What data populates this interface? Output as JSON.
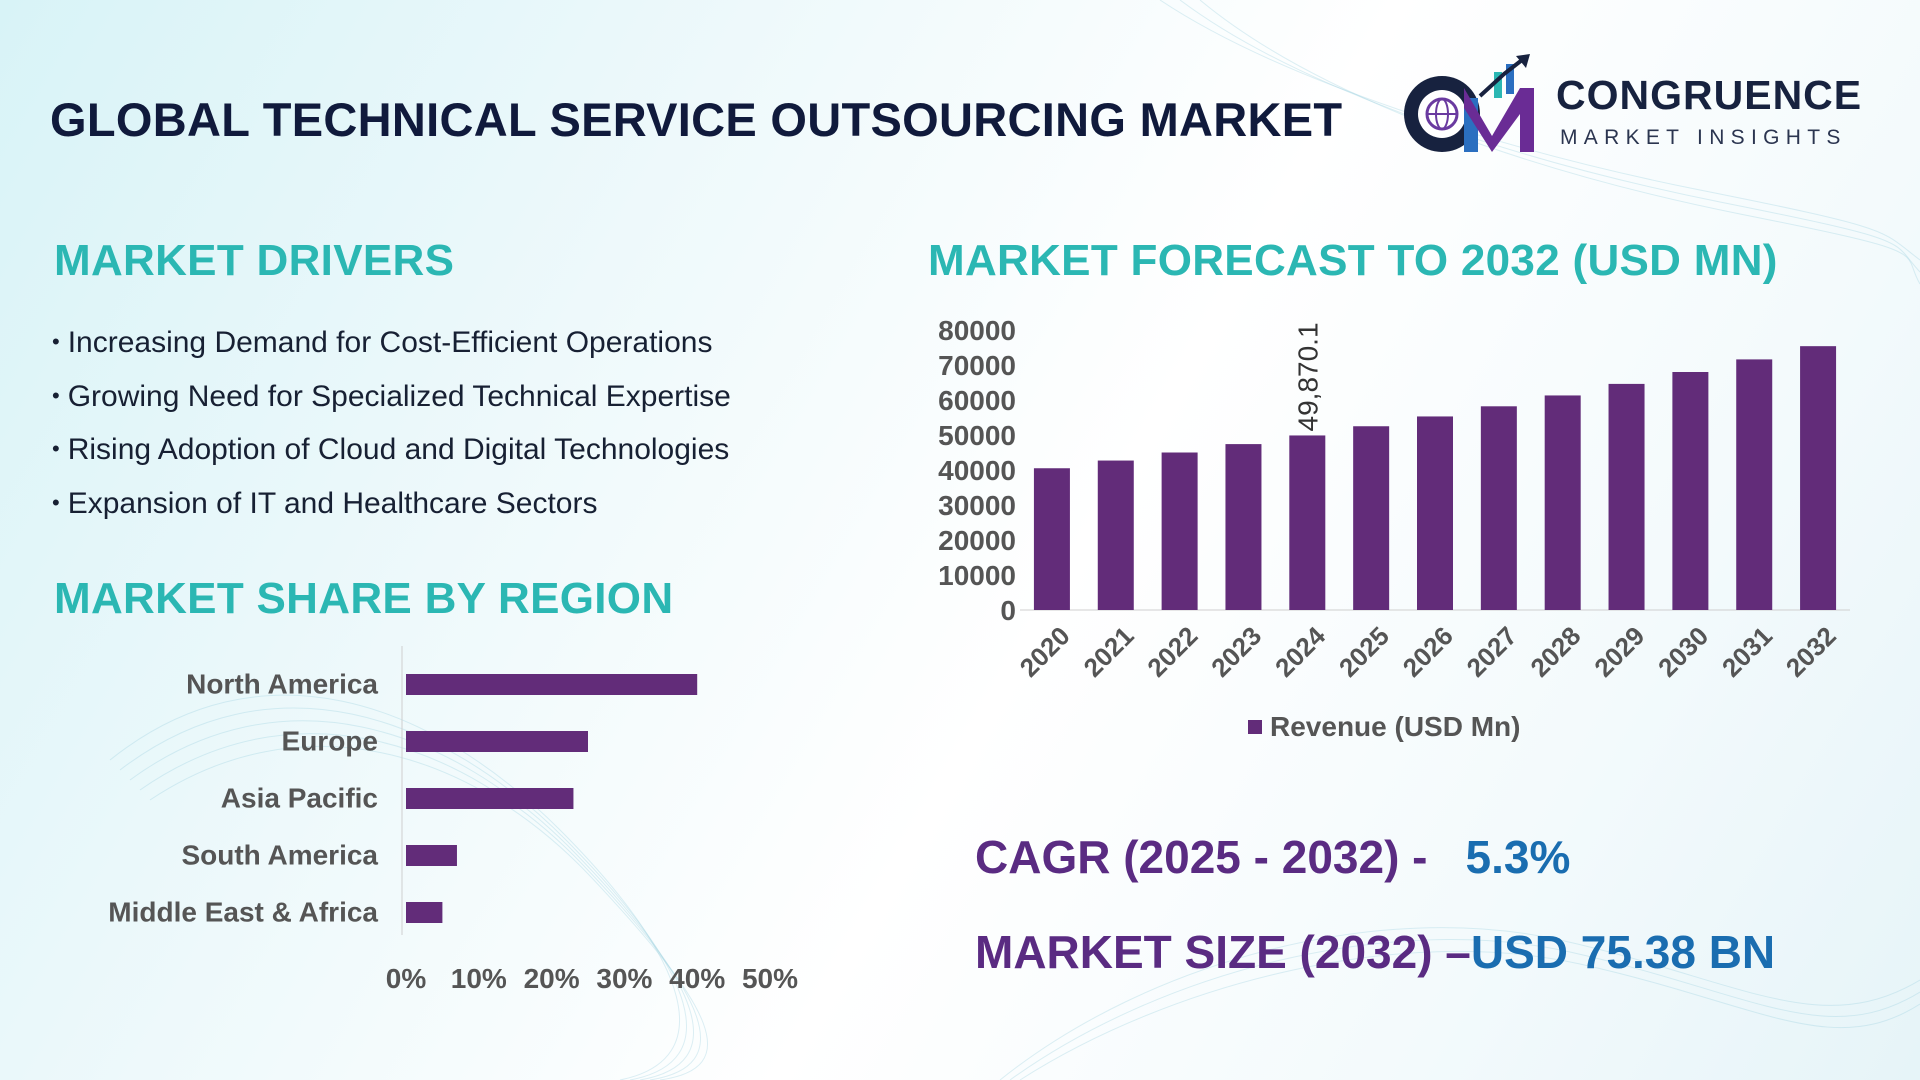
{
  "header": {
    "title": "GLOBAL TECHNICAL SERVICE OUTSOURCING MARKET",
    "logo_name": "CONGRUENCE",
    "logo_subtitle": "MARKET INSIGHTS",
    "logo_mark_letters": "CM"
  },
  "drivers": {
    "title": "MARKET DRIVERS",
    "bullet": "•",
    "items": [
      "Increasing Demand for Cost-Efficient Operations",
      "Growing Need for Specialized Technical Expertise",
      "Rising Adoption of Cloud and Digital Technologies",
      "Expansion of IT and Healthcare Sectors"
    ]
  },
  "region": {
    "title": "MARKET SHARE BY REGION"
  },
  "forecast": {
    "title": "MARKET FORECAST TO 2032 (USD MN)"
  },
  "stats": {
    "cagr_label": "CAGR (2025 - 2032) -",
    "cagr_value": "5.3%",
    "size_label": "MARKET SIZE (2032) –",
    "size_value": "USD 75.38 BN"
  },
  "colors": {
    "bar": "#622c79",
    "title_teal": "#2bb7b3",
    "stat_purple": "#5a2b82",
    "stat_blue": "#1a6db0",
    "axis_text": "#555555"
  },
  "chart_data": [
    {
      "type": "bar",
      "orientation": "horizontal",
      "title": "MARKET SHARE BY REGION",
      "categories": [
        "North America",
        "Europe",
        "Asia Pacific",
        "South America",
        "Middle East & Africa"
      ],
      "values": [
        40,
        25,
        23,
        7,
        5
      ],
      "unit": "%",
      "xlim": [
        0,
        50
      ],
      "xticks": [
        "0%",
        "10%",
        "20%",
        "30%",
        "40%",
        "50%"
      ],
      "grid": false,
      "legend": "none"
    },
    {
      "type": "bar",
      "title": "MARKET FORECAST TO 2032 (USD MN)",
      "categories": [
        "2020",
        "2021",
        "2022",
        "2023",
        "2024",
        "2025",
        "2026",
        "2027",
        "2028",
        "2029",
        "2030",
        "2031",
        "2032"
      ],
      "series": [
        {
          "name": "Revenue (USD Mn)",
          "values": [
            40500,
            42700,
            45000,
            47400,
            49870.1,
            52500,
            55300,
            58200,
            61300,
            64600,
            68000,
            71600,
            75380
          ]
        }
      ],
      "data_labels": [
        {
          "category": "2024",
          "text": "49,870.1"
        }
      ],
      "ylim": [
        0,
        80000
      ],
      "yticks": [
        0,
        10000,
        20000,
        30000,
        40000,
        50000,
        60000,
        70000,
        80000
      ],
      "grid": false,
      "legend": "bottom"
    }
  ]
}
